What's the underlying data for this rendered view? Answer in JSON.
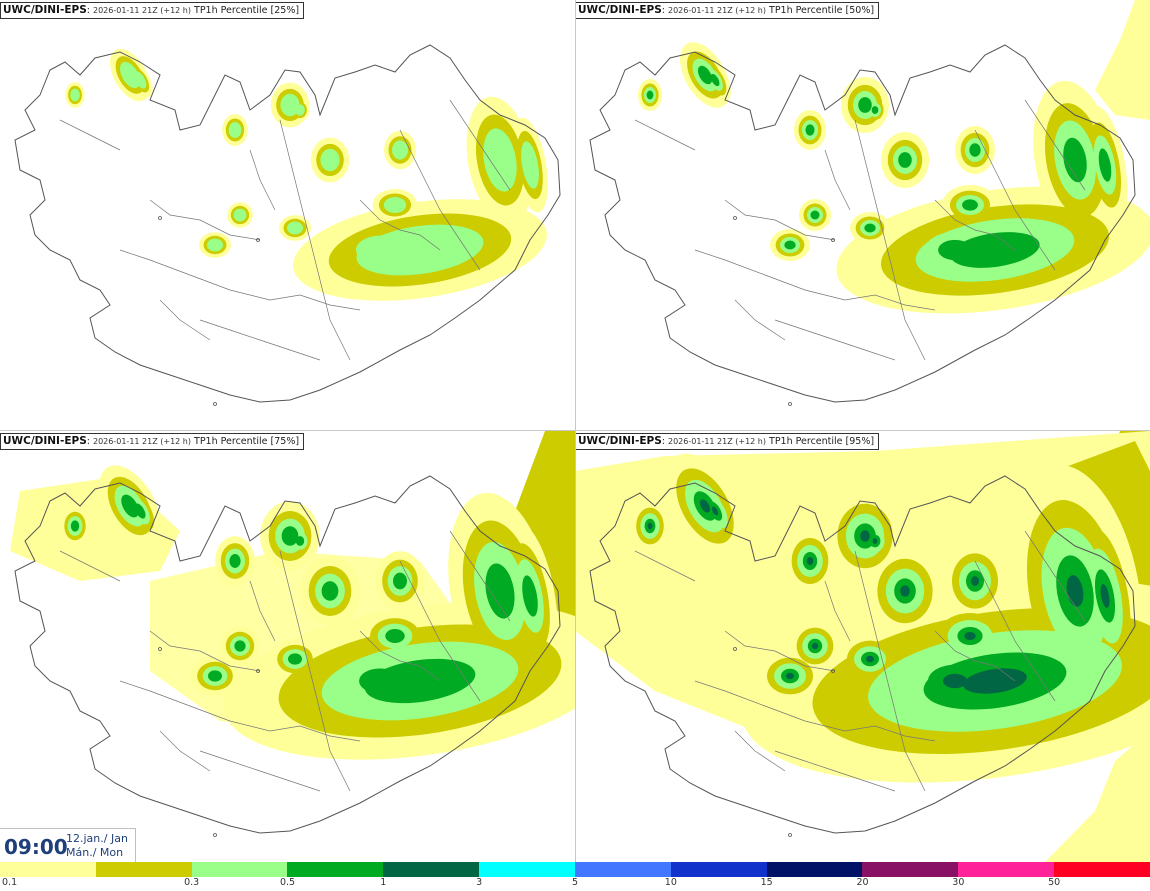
{
  "panels": [
    {
      "model": "UWC/DINI-EPS",
      "run": "2026-01-11 21Z (+12 h)",
      "param": "TP1h Percentile [25%]",
      "level": 0
    },
    {
      "model": "UWC/DINI-EPS",
      "run": "2026-01-11 21Z (+12 h)",
      "param": "TP1h Percentile [50%]",
      "level": 1
    },
    {
      "model": "UWC/DINI-EPS",
      "run": "2026-01-11 21Z (+12 h)",
      "param": "TP1h Percentile [75%]",
      "level": 2
    },
    {
      "model": "UWC/DINI-EPS",
      "run": "2026-01-11 21Z (+12 h)",
      "param": "TP1h Percentile [95%]",
      "level": 3
    }
  ],
  "valid_time": {
    "time": "09:00",
    "date_line1": "12.jan./ Jan",
    "date_line2": "Mán./ Mon"
  },
  "colorbar": {
    "colors": [
      "#ffff99",
      "#cccc00",
      "#99ff88",
      "#00aa22",
      "#006644",
      "#00ffff",
      "#4477ff",
      "#1133cc",
      "#001166",
      "#881166",
      "#ff2299",
      "#ff0022"
    ],
    "labels": [
      "0.1",
      "0.3",
      "0.5",
      "1",
      "3",
      "5",
      "10",
      "15",
      "20",
      "30",
      "50"
    ]
  },
  "map_colors": {
    "land_outline": "#555555",
    "roads": "#777777",
    "light": "#ffff99",
    "mid": "#cccc00",
    "green": "#99ff88",
    "dark": "#00aa22",
    "darker": "#006644"
  }
}
